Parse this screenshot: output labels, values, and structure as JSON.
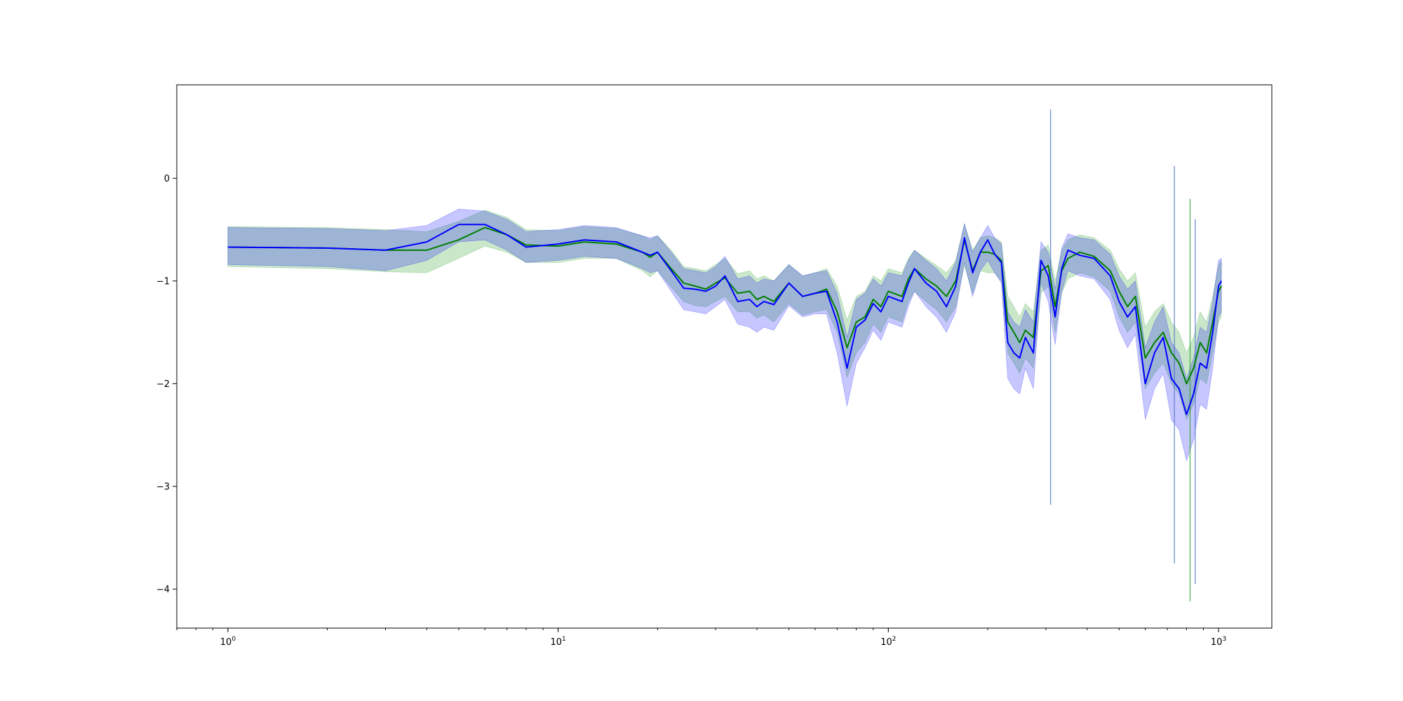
{
  "chart_data": {
    "type": "line",
    "title": "",
    "xlabel": "",
    "ylabel": "",
    "x_scale": "log",
    "xlim": [
      0.7,
      1450
    ],
    "ylim": [
      -4.38,
      0.91
    ],
    "grid": false,
    "x_ticks": [
      {
        "value": 1,
        "base": "10",
        "exp": "0"
      },
      {
        "value": 10,
        "base": "10",
        "exp": "1"
      },
      {
        "value": 100,
        "base": "10",
        "exp": "2"
      },
      {
        "value": 1000,
        "base": "10",
        "exp": "3"
      }
    ],
    "y_ticks": [
      {
        "value": 0,
        "label": "0"
      },
      {
        "value": -1,
        "label": "−1"
      },
      {
        "value": -2,
        "label": "−2"
      },
      {
        "value": -3,
        "label": "−3"
      },
      {
        "value": -4,
        "label": "−4"
      }
    ],
    "series": [
      {
        "color": "#008000",
        "band_color": "#2ca02c",
        "points": [
          [
            1,
            -0.67,
            -0.47,
            -0.86
          ],
          [
            2,
            -0.68,
            -0.48,
            -0.88
          ],
          [
            3,
            -0.7,
            -0.5,
            -0.91
          ],
          [
            4,
            -0.7,
            -0.52,
            -0.92
          ],
          [
            5,
            -0.6,
            -0.42,
            -0.78
          ],
          [
            6,
            -0.48,
            -0.31,
            -0.66
          ],
          [
            7,
            -0.55,
            -0.38,
            -0.72
          ],
          [
            8,
            -0.65,
            -0.5,
            -0.82
          ],
          [
            10,
            -0.66,
            -0.51,
            -0.82
          ],
          [
            12,
            -0.62,
            -0.47,
            -0.78
          ],
          [
            15,
            -0.64,
            -0.49,
            -0.78
          ],
          [
            18,
            -0.72,
            -0.56,
            -0.9
          ],
          [
            19,
            -0.77,
            -0.6,
            -0.96
          ],
          [
            20,
            -0.72,
            -0.56,
            -0.9
          ],
          [
            22,
            -0.88,
            -0.7,
            -1.06
          ],
          [
            24,
            -1.02,
            -0.86,
            -1.2
          ],
          [
            26,
            -1.05,
            -0.88,
            -1.24
          ],
          [
            28,
            -1.08,
            -0.9,
            -1.25
          ],
          [
            30,
            -1.02,
            -0.84,
            -1.2
          ],
          [
            32,
            -0.97,
            -0.78,
            -1.15
          ],
          [
            35,
            -1.12,
            -0.93,
            -1.3
          ],
          [
            38,
            -1.1,
            -0.9,
            -1.3
          ],
          [
            40,
            -1.18,
            -0.98,
            -1.36
          ],
          [
            42,
            -1.15,
            -0.95,
            -1.33
          ],
          [
            45,
            -1.2,
            -1.0,
            -1.4
          ],
          [
            50,
            -1.02,
            -0.84,
            -1.22
          ],
          [
            55,
            -1.15,
            -0.95,
            -1.33
          ],
          [
            60,
            -1.12,
            -0.92,
            -1.3
          ],
          [
            65,
            -1.08,
            -0.88,
            -1.28
          ],
          [
            70,
            -1.3,
            -1.05,
            -1.5
          ],
          [
            75,
            -1.65,
            -1.38,
            -1.94
          ],
          [
            80,
            -1.4,
            -1.15,
            -1.7
          ],
          [
            85,
            -1.35,
            -1.1,
            -1.6
          ],
          [
            90,
            -1.18,
            -0.95,
            -1.42
          ],
          [
            95,
            -1.25,
            -1.0,
            -1.5
          ],
          [
            100,
            -1.1,
            -0.88,
            -1.35
          ],
          [
            110,
            -1.15,
            -0.92,
            -1.4
          ],
          [
            115,
            -0.98,
            -0.78,
            -1.2
          ],
          [
            120,
            -0.88,
            -0.7,
            -1.1
          ],
          [
            130,
            -0.98,
            -0.78,
            -1.2
          ],
          [
            140,
            -1.05,
            -0.85,
            -1.28
          ],
          [
            150,
            -1.15,
            -0.92,
            -1.4
          ],
          [
            160,
            -1.0,
            -0.8,
            -1.25
          ],
          [
            170,
            -0.6,
            -0.45,
            -0.85
          ],
          [
            180,
            -0.9,
            -0.7,
            -1.12
          ],
          [
            190,
            -0.72,
            -0.58,
            -0.9
          ],
          [
            200,
            -0.72,
            -0.56,
            -0.92
          ],
          [
            210,
            -0.74,
            -0.58,
            -0.92
          ],
          [
            220,
            -0.8,
            -0.62,
            -1.0
          ],
          [
            230,
            -1.4,
            -1.15,
            -1.7
          ],
          [
            240,
            -1.5,
            -1.25,
            -1.8
          ],
          [
            250,
            -1.6,
            -1.35,
            -1.9
          ],
          [
            260,
            -1.48,
            -1.22,
            -1.75
          ],
          [
            275,
            -1.55,
            -1.3,
            -1.85
          ],
          [
            290,
            -0.9,
            -0.7,
            -1.12
          ],
          [
            305,
            -0.85,
            -0.65,
            -1.05
          ],
          [
            320,
            -1.25,
            -1.0,
            -1.5
          ],
          [
            335,
            -0.9,
            -0.7,
            -1.12
          ],
          [
            350,
            -0.78,
            -0.6,
            -0.98
          ],
          [
            380,
            -0.72,
            -0.55,
            -0.92
          ],
          [
            420,
            -0.76,
            -0.58,
            -0.96
          ],
          [
            470,
            -0.9,
            -0.7,
            -1.1
          ],
          [
            500,
            -1.1,
            -0.88,
            -1.35
          ],
          [
            530,
            -1.25,
            -1.0,
            -1.5
          ],
          [
            560,
            -1.15,
            -0.92,
            -1.4
          ],
          [
            600,
            -1.75,
            -1.45,
            -2.05
          ],
          [
            640,
            -1.6,
            -1.3,
            -1.9
          ],
          [
            680,
            -1.5,
            -1.22,
            -1.8
          ],
          [
            720,
            -1.7,
            -1.4,
            -2.0
          ],
          [
            760,
            -1.8,
            -1.5,
            -2.1
          ],
          [
            800,
            -2.0,
            -1.7,
            -2.35
          ],
          [
            840,
            -1.85,
            -1.55,
            -2.2
          ],
          [
            880,
            -1.6,
            -1.3,
            -1.95
          ],
          [
            920,
            -1.7,
            -1.4,
            -2.0
          ],
          [
            960,
            -1.4,
            -1.15,
            -1.7
          ],
          [
            1000,
            -1.1,
            -0.85,
            -1.4
          ],
          [
            1020,
            -1.05,
            -0.8,
            -1.35
          ]
        ]
      },
      {
        "color": "#0000ff",
        "band_color": "#0000ff",
        "points": [
          [
            1,
            -0.67,
            -0.48,
            -0.84
          ],
          [
            2,
            -0.68,
            -0.49,
            -0.86
          ],
          [
            3,
            -0.7,
            -0.51,
            -0.9
          ],
          [
            4,
            -0.62,
            -0.46,
            -0.8
          ],
          [
            5,
            -0.45,
            -0.3,
            -0.62
          ],
          [
            6,
            -0.45,
            -0.32,
            -0.6
          ],
          [
            7,
            -0.55,
            -0.4,
            -0.7
          ],
          [
            8,
            -0.67,
            -0.52,
            -0.82
          ],
          [
            10,
            -0.64,
            -0.5,
            -0.8
          ],
          [
            12,
            -0.6,
            -0.46,
            -0.76
          ],
          [
            15,
            -0.62,
            -0.48,
            -0.78
          ],
          [
            18,
            -0.72,
            -0.56,
            -0.88
          ],
          [
            19,
            -0.75,
            -0.58,
            -0.92
          ],
          [
            20,
            -0.72,
            -0.56,
            -0.9
          ],
          [
            22,
            -0.9,
            -0.72,
            -1.1
          ],
          [
            24,
            -1.07,
            -0.88,
            -1.28
          ],
          [
            26,
            -1.08,
            -0.9,
            -1.3
          ],
          [
            28,
            -1.1,
            -0.92,
            -1.32
          ],
          [
            30,
            -1.05,
            -0.86,
            -1.25
          ],
          [
            32,
            -0.95,
            -0.76,
            -1.18
          ],
          [
            35,
            -1.2,
            -0.98,
            -1.42
          ],
          [
            38,
            -1.18,
            -0.95,
            -1.45
          ],
          [
            40,
            -1.25,
            -1.02,
            -1.5
          ],
          [
            42,
            -1.2,
            -0.98,
            -1.45
          ],
          [
            45,
            -1.23,
            -1.0,
            -1.48
          ],
          [
            50,
            -1.02,
            -0.84,
            -1.24
          ],
          [
            55,
            -1.15,
            -0.95,
            -1.35
          ],
          [
            60,
            -1.12,
            -0.92,
            -1.32
          ],
          [
            65,
            -1.1,
            -0.9,
            -1.32
          ],
          [
            70,
            -1.4,
            -1.12,
            -1.7
          ],
          [
            75,
            -1.85,
            -1.55,
            -2.22
          ],
          [
            80,
            -1.45,
            -1.18,
            -1.8
          ],
          [
            85,
            -1.38,
            -1.12,
            -1.65
          ],
          [
            90,
            -1.22,
            -0.98,
            -1.48
          ],
          [
            95,
            -1.3,
            -1.05,
            -1.58
          ],
          [
            100,
            -1.15,
            -0.92,
            -1.4
          ],
          [
            110,
            -1.2,
            -0.95,
            -1.45
          ],
          [
            115,
            -1.02,
            -0.8,
            -1.25
          ],
          [
            120,
            -0.88,
            -0.7,
            -1.1
          ],
          [
            130,
            -1.02,
            -0.8,
            -1.25
          ],
          [
            140,
            -1.1,
            -0.88,
            -1.35
          ],
          [
            150,
            -1.25,
            -1.0,
            -1.5
          ],
          [
            160,
            -1.05,
            -0.82,
            -1.3
          ],
          [
            170,
            -0.58,
            -0.44,
            -0.82
          ],
          [
            180,
            -0.92,
            -0.72,
            -1.15
          ],
          [
            190,
            -0.72,
            -0.58,
            -0.9
          ],
          [
            200,
            -0.6,
            -0.46,
            -0.8
          ],
          [
            210,
            -0.74,
            -0.58,
            -0.92
          ],
          [
            220,
            -0.82,
            -0.64,
            -1.02
          ],
          [
            230,
            -1.6,
            -1.3,
            -1.95
          ],
          [
            240,
            -1.7,
            -1.4,
            -2.05
          ],
          [
            250,
            -1.75,
            -1.45,
            -2.1
          ],
          [
            260,
            -1.55,
            -1.28,
            -1.85
          ],
          [
            275,
            -1.7,
            -1.4,
            -2.05
          ],
          [
            290,
            -0.8,
            -0.62,
            -1.02
          ],
          [
            305,
            -0.95,
            -0.72,
            -1.2
          ],
          [
            320,
            -1.35,
            -1.08,
            -1.62
          ],
          [
            335,
            -0.88,
            -0.68,
            -1.1
          ],
          [
            350,
            -0.7,
            -0.54,
            -0.9
          ],
          [
            380,
            -0.75,
            -0.58,
            -0.95
          ],
          [
            420,
            -0.78,
            -0.6,
            -0.98
          ],
          [
            470,
            -0.95,
            -0.74,
            -1.18
          ],
          [
            500,
            -1.2,
            -0.95,
            -1.48
          ],
          [
            530,
            -1.35,
            -1.08,
            -1.65
          ],
          [
            560,
            -1.25,
            -1.0,
            -1.52
          ],
          [
            600,
            -2.0,
            -1.65,
            -2.35
          ],
          [
            640,
            -1.7,
            -1.4,
            -2.05
          ],
          [
            680,
            -1.55,
            -1.25,
            -1.9
          ],
          [
            720,
            -1.95,
            -1.6,
            -2.35
          ],
          [
            760,
            -2.05,
            -1.7,
            -2.45
          ],
          [
            800,
            -2.3,
            -1.95,
            -2.75
          ],
          [
            840,
            -2.1,
            -1.75,
            -2.55
          ],
          [
            880,
            -1.8,
            -1.45,
            -2.2
          ],
          [
            920,
            -1.85,
            -1.5,
            -2.25
          ],
          [
            960,
            -1.5,
            -1.2,
            -1.85
          ],
          [
            1000,
            -1.05,
            -0.8,
            -1.35
          ],
          [
            1020,
            -1.0,
            -0.78,
            -1.3
          ]
        ]
      }
    ],
    "spikes": [
      {
        "x": 310,
        "top": 0.67,
        "bottom": -3.18,
        "color": "#4a6fc8"
      },
      {
        "x": 735,
        "top": 0.12,
        "bottom": -3.75,
        "color": "#4a6fc8"
      },
      {
        "x": 820,
        "top": -0.2,
        "bottom": -4.12,
        "color": "#2ca02c"
      },
      {
        "x": 850,
        "top": -0.4,
        "bottom": -3.95,
        "color": "#4a6fc8"
      }
    ]
  }
}
